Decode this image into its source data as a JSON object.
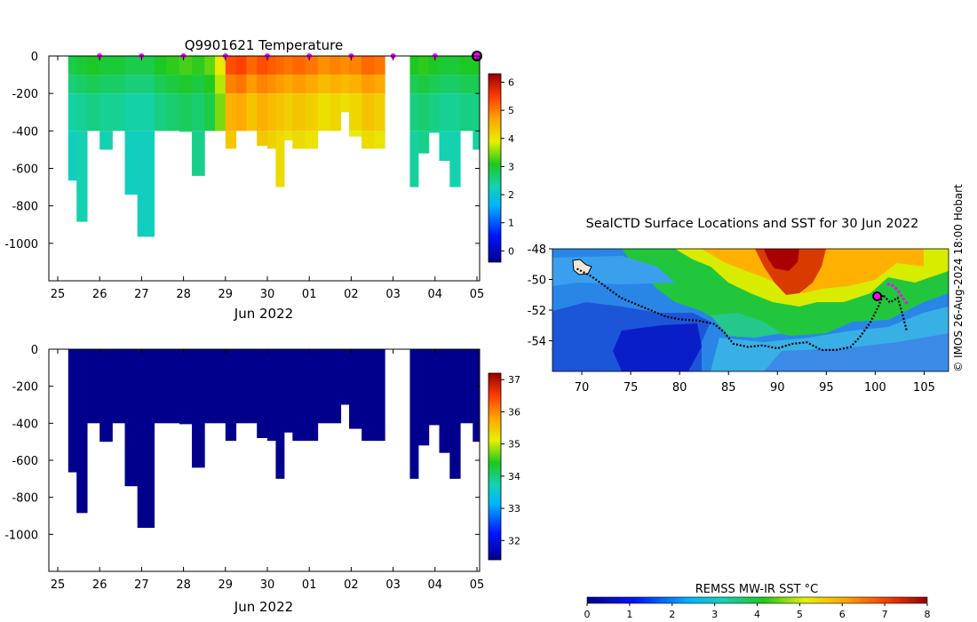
{
  "credit": "© IMOS 26-Aug-2024 18:00 Hobart",
  "chart_data": [
    {
      "type": "heatmap",
      "title": "Q9901621  Temperature",
      "xlabel": "Jun 2022",
      "x_ticks": [
        "25",
        "26",
        "27",
        "28",
        "29",
        "30",
        "01",
        "02",
        "03",
        "04",
        "05"
      ],
      "y_ticks": [
        0,
        -200,
        -400,
        -600,
        -800,
        -1000
      ],
      "ylim": [
        -1200,
        0
      ],
      "colorbar": {
        "min": -0.4,
        "max": 6.3,
        "ticks": [
          0,
          1,
          2,
          3,
          4,
          5,
          6
        ]
      },
      "surface_markers": [
        "26",
        "27",
        "28",
        "29",
        "30",
        "01",
        "02",
        "03",
        "04"
      ],
      "profiles": [
        {
          "day": 0.25,
          "depth": 665,
          "temp": 2.5
        },
        {
          "day": 0.45,
          "depth": 885,
          "temp": 2.6
        },
        {
          "day": 0.7,
          "depth": 400,
          "temp": 2.7
        },
        {
          "day": 1.0,
          "depth": 500,
          "temp": 2.6
        },
        {
          "day": 1.3,
          "depth": 400,
          "temp": 2.6
        },
        {
          "day": 1.6,
          "depth": 740,
          "temp": 2.5
        },
        {
          "day": 1.9,
          "depth": 965,
          "temp": 2.5
        },
        {
          "day": 2.3,
          "depth": 400,
          "temp": 2.7
        },
        {
          "day": 2.6,
          "depth": 400,
          "temp": 2.8
        },
        {
          "day": 2.9,
          "depth": 405,
          "temp": 2.9
        },
        {
          "day": 3.2,
          "depth": 640,
          "temp": 2.8
        },
        {
          "day": 3.5,
          "depth": 400,
          "temp": 3.0
        },
        {
          "day": 3.75,
          "depth": 400,
          "temp": 3.6
        },
        {
          "day": 4.0,
          "depth": 495,
          "temp": 4.8
        },
        {
          "day": 4.25,
          "depth": 400,
          "temp": 4.9
        },
        {
          "day": 4.5,
          "depth": 400,
          "temp": 4.6
        },
        {
          "day": 4.75,
          "depth": 480,
          "temp": 4.8
        },
        {
          "day": 5.0,
          "depth": 495,
          "temp": 4.7
        },
        {
          "day": 5.2,
          "depth": 700,
          "temp": 4.6
        },
        {
          "day": 5.4,
          "depth": 450,
          "temp": 4.5
        },
        {
          "day": 5.6,
          "depth": 495,
          "temp": 4.6
        },
        {
          "day": 5.9,
          "depth": 495,
          "temp": 4.5
        },
        {
          "day": 6.2,
          "depth": 400,
          "temp": 4.3
        },
        {
          "day": 6.5,
          "depth": 400,
          "temp": 4.4
        },
        {
          "day": 6.75,
          "depth": 300,
          "temp": 4.3
        },
        {
          "day": 6.95,
          "depth": 430,
          "temp": 4.4
        },
        {
          "day": 7.25,
          "depth": 495,
          "temp": 4.6
        },
        {
          "day": 7.55,
          "depth": 495,
          "temp": 4.5
        },
        {
          "day": 8.4,
          "depth": 700,
          "temp": 2.7
        },
        {
          "day": 8.6,
          "depth": 520,
          "temp": 2.8
        },
        {
          "day": 8.85,
          "depth": 410,
          "temp": 2.7
        },
        {
          "day": 9.1,
          "depth": 560,
          "temp": 2.6
        },
        {
          "day": 9.35,
          "depth": 700,
          "temp": 2.6
        },
        {
          "day": 9.6,
          "depth": 400,
          "temp": 2.7
        },
        {
          "day": 9.9,
          "depth": 500,
          "temp": 2.7
        }
      ]
    },
    {
      "type": "heatmap",
      "title": "",
      "xlabel": "Jun 2022",
      "x_ticks": [
        "25",
        "26",
        "27",
        "28",
        "29",
        "30",
        "01",
        "02",
        "03",
        "04",
        "05"
      ],
      "y_ticks": [
        0,
        -200,
        -400,
        -600,
        -800,
        -1000
      ],
      "ylim": [
        -1200,
        0
      ],
      "colorbar": {
        "min": 31.4,
        "max": 37.2,
        "ticks": [
          32,
          33,
          34,
          35,
          36,
          37
        ]
      },
      "fill_value": 31.4,
      "uses_same_profiles_as_panel": 0
    },
    {
      "type": "heatmap",
      "title": "SealCTD Surface Locations and SST for 30 Jun 2022",
      "x_ticks": [
        70,
        75,
        80,
        85,
        90,
        95,
        100,
        105
      ],
      "y_ticks": [
        -48,
        -50,
        -52,
        -54
      ],
      "xlim": [
        67,
        107.5
      ],
      "ylim": [
        -56,
        -48
      ],
      "colorbar": {
        "label": "REMSS MW-IR SST °C",
        "min": 0,
        "max": 8,
        "ticks": [
          0,
          1,
          2,
          3,
          4,
          5,
          6,
          7,
          8
        ]
      },
      "track_lon_lat": [
        [
          69.5,
          -49.3
        ],
        [
          71,
          -49.8
        ],
        [
          72.5,
          -50.5
        ],
        [
          74,
          -51.2
        ],
        [
          75.5,
          -51.6
        ],
        [
          77,
          -52.0
        ],
        [
          78.5,
          -52.4
        ],
        [
          80,
          -52.6
        ],
        [
          82,
          -52.7
        ],
        [
          83.5,
          -52.9
        ],
        [
          84.5,
          -53.4
        ],
        [
          85.5,
          -54.2
        ],
        [
          87,
          -54.4
        ],
        [
          88.5,
          -54.3
        ],
        [
          90,
          -54.5
        ],
        [
          91.5,
          -54.2
        ],
        [
          93,
          -54.1
        ],
        [
          94.5,
          -54.6
        ],
        [
          96,
          -54.6
        ],
        [
          97.5,
          -54.4
        ],
        [
          98.5,
          -53.7
        ],
        [
          99.5,
          -52.8
        ],
        [
          100.3,
          -51.8
        ],
        [
          100.8,
          -51.0
        ],
        [
          101.5,
          -51.5
        ],
        [
          102.3,
          -51.2
        ],
        [
          102.8,
          -52.3
        ],
        [
          103.2,
          -53.3
        ]
      ],
      "recent_lon_lat": [
        [
          101.2,
          -50.3
        ],
        [
          101.8,
          -50.4
        ],
        [
          102.3,
          -50.7
        ],
        [
          102.8,
          -51.2
        ],
        [
          103.3,
          -51.6
        ]
      ],
      "latest_lon_lat": [
        100.2,
        -51.1
      ]
    }
  ]
}
